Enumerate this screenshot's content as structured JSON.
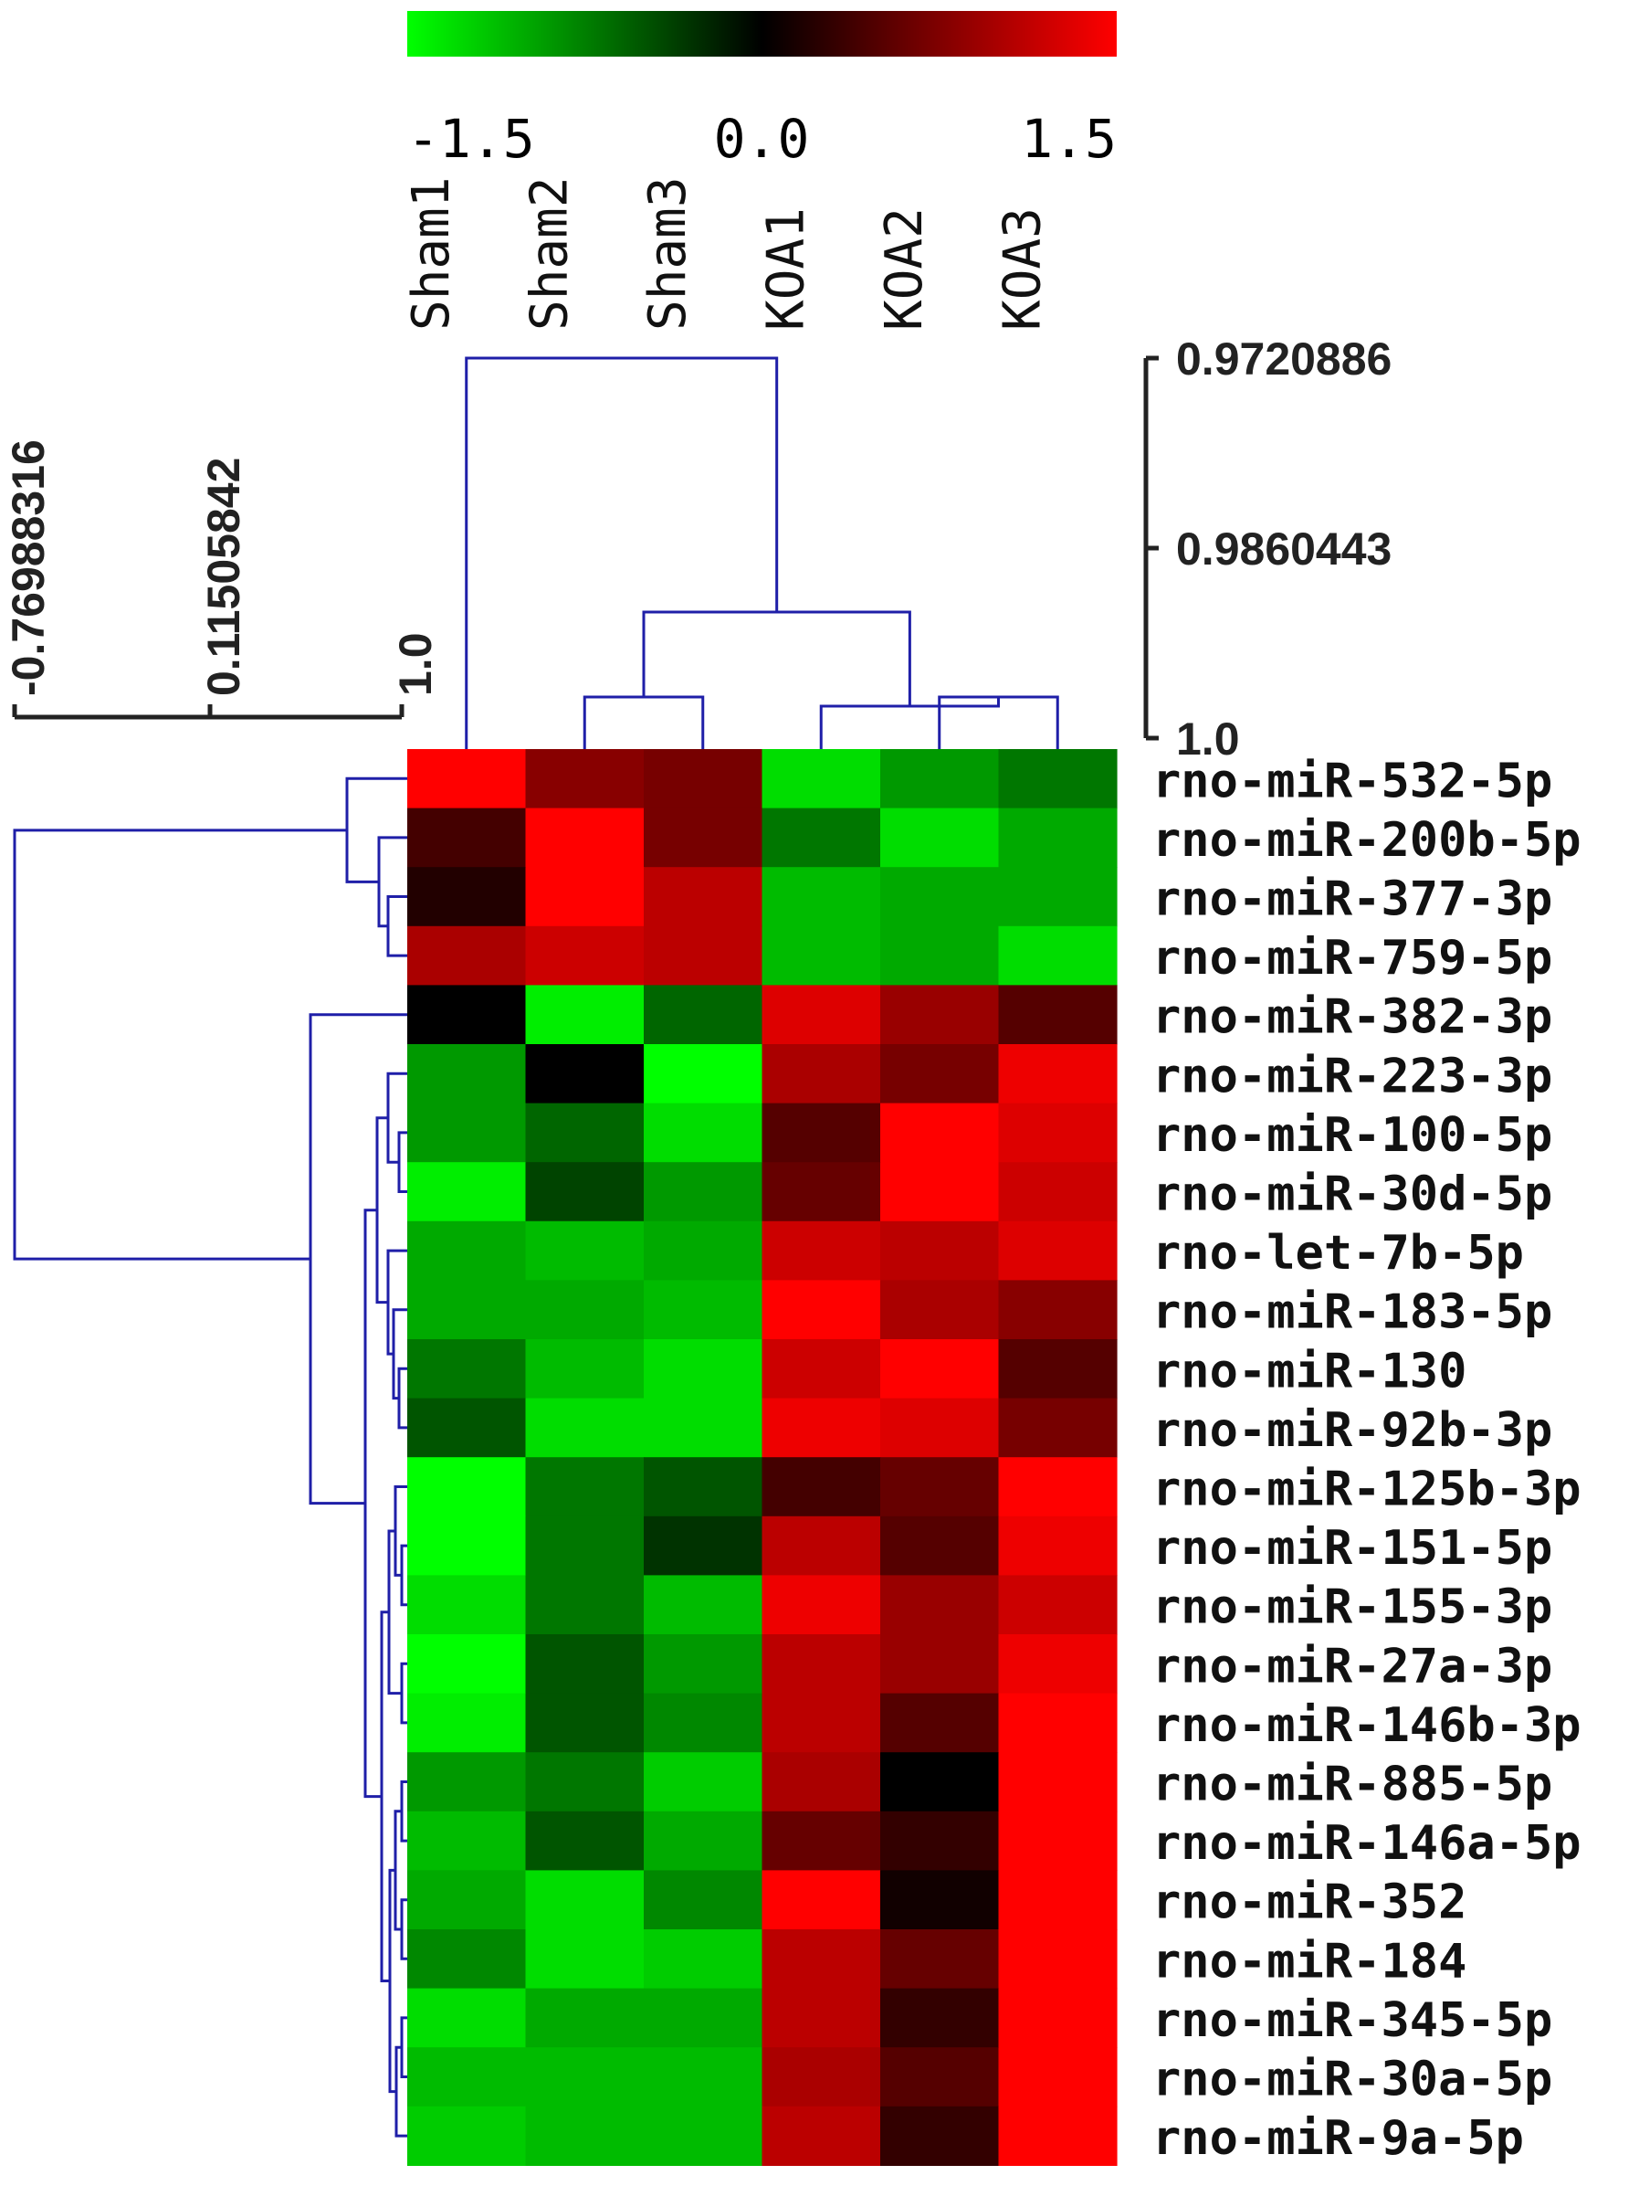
{
  "chart_data": {
    "type": "heatmap",
    "columns": [
      "Sham1",
      "Sham2",
      "Sham3",
      "KOA1",
      "KOA2",
      "KOA3"
    ],
    "rows": [
      "rno-miR-532-5p",
      "rno-miR-200b-5p",
      "rno-miR-377-3p",
      "rno-miR-759-5p",
      "rno-miR-382-3p",
      "rno-miR-223-3p",
      "rno-miR-100-5p",
      "rno-miR-30d-5p",
      "rno-let-7b-5p",
      "rno-miR-183-5p",
      "rno-miR-130",
      "rno-miR-92b-3p",
      "rno-miR-125b-3p",
      "rno-miR-151-5p",
      "rno-miR-155-3p",
      "rno-miR-27a-3p",
      "rno-miR-146b-3p",
      "rno-miR-885-5p",
      "rno-miR-146a-5p",
      "rno-miR-352",
      "rno-miR-184",
      "rno-miR-345-5p",
      "rno-miR-30a-5p",
      "rno-miR-9a-5p"
    ],
    "values": [
      [
        1.5,
        0.8,
        0.7,
        -1.3,
        -0.9,
        -0.7
      ],
      [
        0.4,
        1.5,
        0.7,
        -0.7,
        -1.3,
        -1.0
      ],
      [
        0.2,
        1.5,
        1.1,
        -1.1,
        -1.0,
        -1.0
      ],
      [
        1.0,
        1.2,
        1.1,
        -1.1,
        -1.0,
        -1.3
      ],
      [
        0.0,
        -1.4,
        -0.6,
        1.3,
        0.9,
        0.5
      ],
      [
        -0.9,
        0.0,
        -1.5,
        1.0,
        0.7,
        1.4
      ],
      [
        -0.9,
        -0.6,
        -1.3,
        0.5,
        1.5,
        1.3
      ],
      [
        -1.4,
        -0.4,
        -0.9,
        0.6,
        1.5,
        1.2
      ],
      [
        -1.0,
        -1.1,
        -1.0,
        1.2,
        1.1,
        1.3
      ],
      [
        -1.0,
        -1.0,
        -1.1,
        1.5,
        1.0,
        0.8
      ],
      [
        -0.7,
        -1.1,
        -1.3,
        1.2,
        1.5,
        0.5
      ],
      [
        -0.5,
        -1.3,
        -1.3,
        1.4,
        1.3,
        0.7
      ],
      [
        -1.5,
        -0.7,
        -0.5,
        0.4,
        0.6,
        1.5
      ],
      [
        -1.5,
        -0.7,
        -0.3,
        1.1,
        0.5,
        1.4
      ],
      [
        -1.3,
        -0.7,
        -1.1,
        1.4,
        0.9,
        1.2
      ],
      [
        -1.5,
        -0.5,
        -0.9,
        1.1,
        0.9,
        1.4
      ],
      [
        -1.4,
        -0.5,
        -0.8,
        1.1,
        0.5,
        1.5
      ],
      [
        -0.9,
        -0.7,
        -1.2,
        1.0,
        0.0,
        1.5
      ],
      [
        -1.1,
        -0.5,
        -1.0,
        0.6,
        0.3,
        1.5
      ],
      [
        -1.0,
        -1.3,
        -0.8,
        1.5,
        0.1,
        1.5
      ],
      [
        -0.8,
        -1.3,
        -1.2,
        1.1,
        0.6,
        1.5
      ],
      [
        -1.3,
        -1.0,
        -1.0,
        1.1,
        0.3,
        1.5
      ],
      [
        -1.1,
        -1.1,
        -1.1,
        1.0,
        0.5,
        1.5
      ],
      [
        -1.2,
        -1.1,
        -1.1,
        1.1,
        0.3,
        1.5
      ]
    ],
    "colorbar": {
      "min": -1.5,
      "max": 1.5,
      "tick_labels": [
        "-1.5",
        "0.0",
        "1.5"
      ],
      "low_color": "#00ff00",
      "mid_color": "#000000",
      "high_color": "#ff0000"
    },
    "column_scale_labels": [
      "0.9720886",
      "0.9860443",
      "1.0"
    ],
    "row_scale_labels": [
      "-0.76988316",
      "0.11505842",
      "1.0"
    ],
    "dendrogram_color": "#1f1fa8",
    "scale_color": "#222222"
  }
}
